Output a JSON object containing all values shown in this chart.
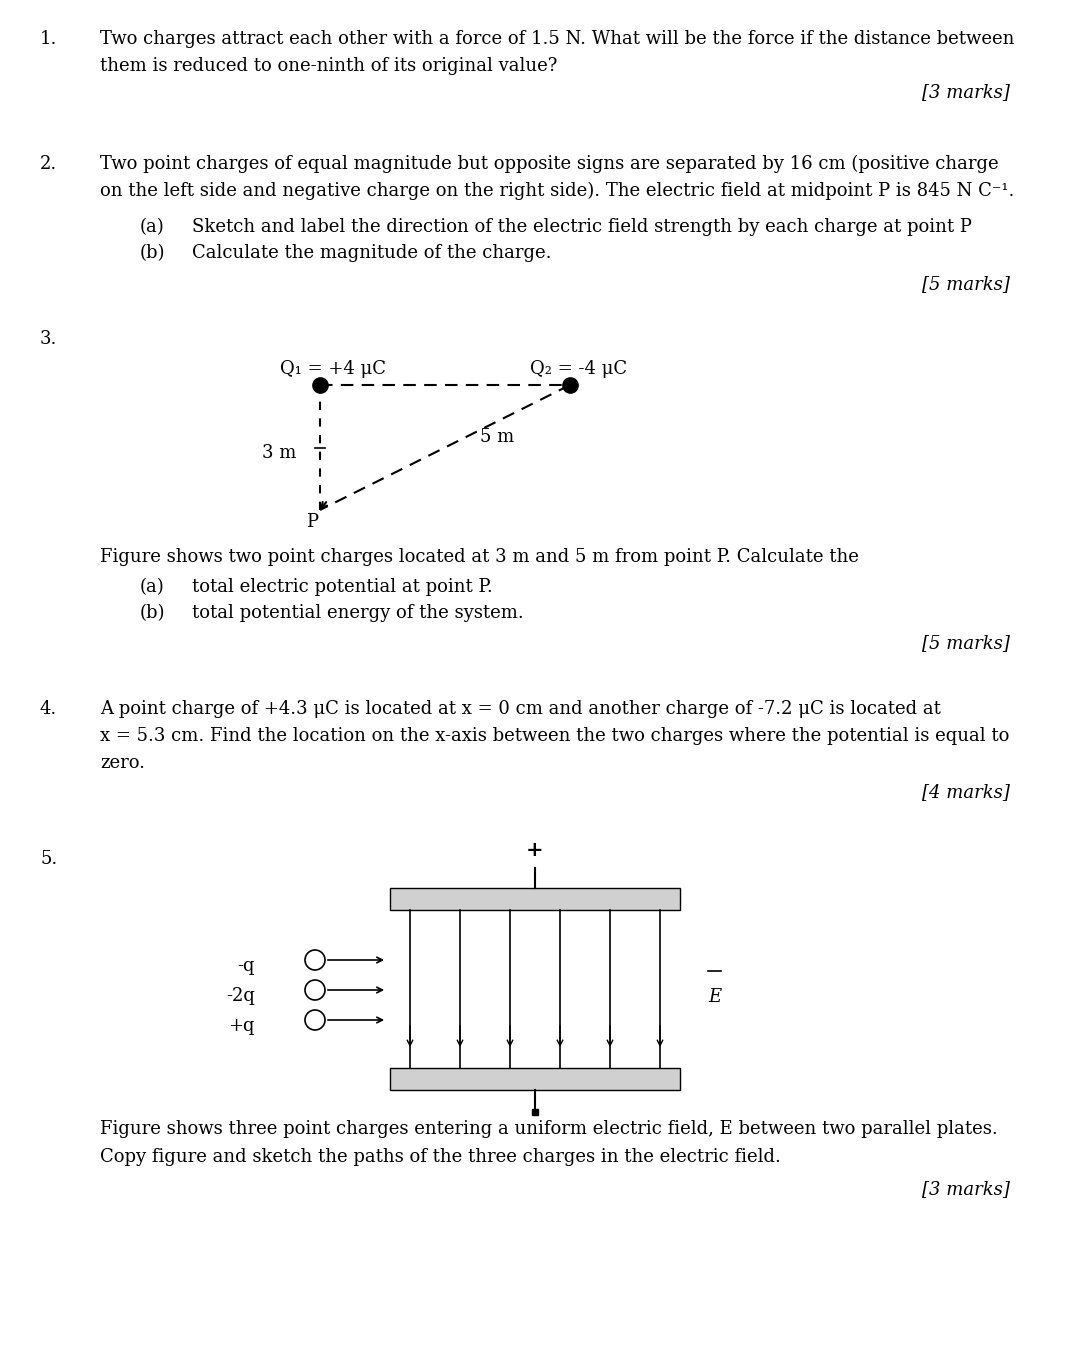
{
  "bg_color": "#ffffff",
  "text_color": "#000000",
  "font_family": "DejaVu Serif",
  "q1": {
    "number": "1.",
    "text_line1": "Two charges attract each other with a force of 1.5 N. What will be the force if the distance between",
    "text_line2": "them is reduced to one-ninth of its original value?",
    "marks": "[3 marks]"
  },
  "q2": {
    "number": "2.",
    "text_line1": "Two point charges of equal magnitude but opposite signs are separated by 16 cm (positive charge",
    "text_line2": "on the left side and negative charge on the right side). The electric field at midpoint P is 845 N C⁻¹.",
    "sub_a": "(a)",
    "sub_a_text": "Sketch and label the direction of the electric field strength by each charge at point P",
    "sub_b": "(b)",
    "sub_b_text": "Calculate the magnitude of the charge.",
    "marks": "[5 marks]"
  },
  "q3": {
    "number": "3.",
    "Q1_label": "Q₁ = +4 μC",
    "Q2_label": "Q₂ = -4 μC",
    "label_3m": "3 m",
    "label_5m": "5 m",
    "label_P": "P",
    "fig_caption": "Figure shows two point charges located at 3 m and 5 m from point P. Calculate the",
    "sub_a": "(a)",
    "sub_a_text": "total electric potential at point P.",
    "sub_b": "(b)",
    "sub_b_text": "total potential energy of the system.",
    "marks": "[5 marks]"
  },
  "q4": {
    "number": "4.",
    "text_line1": "A point charge of +4.3 μC is located at x = 0 cm and another charge of -7.2 μC is located at",
    "text_line2": "x = 5.3 cm. Find the location on the x-axis between the two charges where the potential is equal to",
    "text_line3": "zero.",
    "marks": "[4 marks]"
  },
  "q5": {
    "number": "5.",
    "charge_labels": [
      "-q",
      "-2q",
      "+q"
    ],
    "E_label": "E",
    "fig_caption_line1": "Figure shows three point charges entering a uniform electric field, E between two parallel plates.",
    "fig_caption_line2": "Copy figure and sketch the paths of the three charges in the electric field.",
    "marks": "[3 marks]"
  }
}
